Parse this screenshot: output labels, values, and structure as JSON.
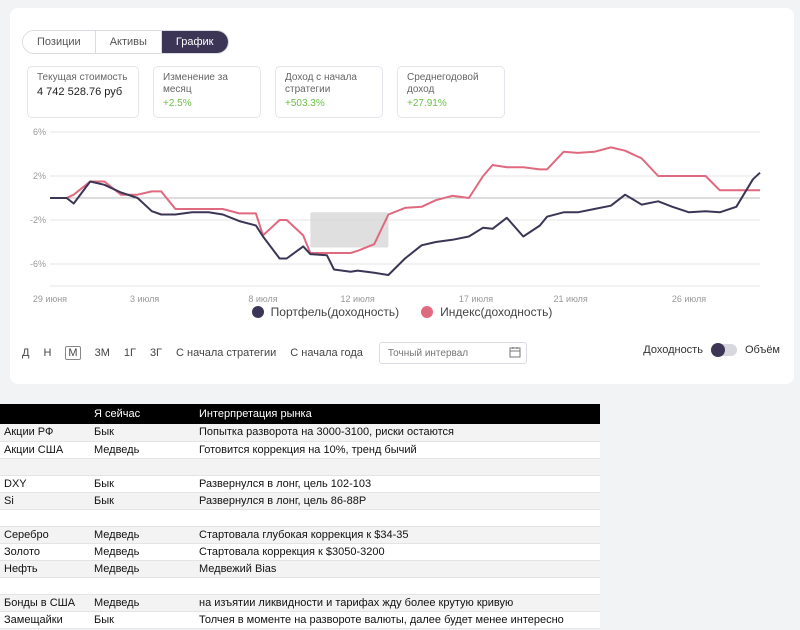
{
  "tabs": [
    "Позиции",
    "Активы",
    "График"
  ],
  "active_tab": 2,
  "kpis": [
    {
      "label": "Текущая стоимость",
      "value": "4 742 528.76 руб",
      "kind": "neutral"
    },
    {
      "label": "Изменение за месяц",
      "value": "+2.5%",
      "kind": "pos"
    },
    {
      "label": "Доход с начала стратегии",
      "value": "+503.3%",
      "kind": "pos"
    },
    {
      "label": "Среднегодовой доход",
      "value": "+27.91%",
      "kind": "pos"
    }
  ],
  "chart_data": {
    "type": "line",
    "y_ticks": [
      "6%",
      "2%",
      "-2%",
      "-6%"
    ],
    "y_tick_values": [
      6,
      2,
      -2,
      -6
    ],
    "ylim": [
      -8,
      6
    ],
    "x_tick_labels": [
      "29 июня",
      "3 июля",
      "8 июля",
      "12 июля",
      "17 июля",
      "21 июля",
      "26 июля"
    ],
    "x_tick_days": [
      0,
      4,
      9,
      13,
      18,
      22,
      27
    ],
    "x": [
      0,
      0.7,
      1,
      1.7,
      2.3,
      3,
      3.7,
      4.3,
      4.7,
      5.3,
      6,
      6.7,
      7.3,
      8,
      8.7,
      9,
      9.7,
      10,
      10.7,
      11,
      11.7,
      12,
      12.7,
      13,
      13.7,
      14.3,
      15,
      15.7,
      16.3,
      17,
      17.7,
      18.3,
      18.7,
      19.3,
      20,
      20.7,
      21,
      21.7,
      22.3,
      23,
      23.7,
      24.3,
      25,
      25.7,
      26.3,
      27,
      27.7,
      28.3,
      29,
      29.7,
      30
    ],
    "series": [
      {
        "name": "Портфель(доходность)",
        "color": "#3d3555",
        "values": [
          0,
          0,
          -0.5,
          1.5,
          1.2,
          0.5,
          0,
          -1.2,
          -1.5,
          -1.5,
          -1.3,
          -1.3,
          -1.5,
          -2.1,
          -2.5,
          -3.5,
          -5.5,
          -5.5,
          -4.4,
          -5.1,
          -5.2,
          -6.5,
          -6.7,
          -6.6,
          -6.8,
          -7.0,
          -5.5,
          -4.3,
          -4.0,
          -3.8,
          -3.5,
          -2.7,
          -2.8,
          -1.8,
          -3.5,
          -2.5,
          -1.7,
          -1.3,
          -1.3,
          -1.0,
          -0.7,
          0.3,
          -0.6,
          -0.3,
          -0.8,
          -1.3,
          -1.2,
          -1.3,
          -0.8,
          1.7,
          2.3
        ]
      },
      {
        "name": "Индекс(доходность)",
        "color": "#e0697f",
        "values": [
          0,
          0,
          0.3,
          1.5,
          1.5,
          0.3,
          0.3,
          0.6,
          0.6,
          -1.0,
          -1.0,
          -1.0,
          -1.0,
          -1.4,
          -1.4,
          -3.4,
          -2.0,
          -2.0,
          -3.4,
          -5.0,
          -5.0,
          -5.0,
          -5.0,
          -4.8,
          -4.2,
          -1.5,
          -0.9,
          -0.8,
          -0.2,
          0.2,
          0,
          2.0,
          3.0,
          2.8,
          2.8,
          2.6,
          2.6,
          4.2,
          4.1,
          4.2,
          4.6,
          4.3,
          3.6,
          2.0,
          2.0,
          2.0,
          2.0,
          0.7,
          0.7,
          0.7,
          0.7
        ]
      }
    ],
    "highlight_region": {
      "x_start": 11.0,
      "x_end": 14.3,
      "y_top": -1.3,
      "y_bottom": -4.5
    },
    "grid": "horizontal"
  },
  "periods": [
    "Д",
    "Н",
    "М",
    "3М",
    "1Г",
    "3Г",
    "С начала стратегии",
    "С начала года"
  ],
  "active_period": 2,
  "date_input_placeholder": "Точный интервал",
  "toggle": {
    "left_label": "Доходность",
    "right_label": "Объём"
  },
  "table": {
    "headers": [
      "",
      "Я сейчас",
      "Интерпретация рынка"
    ],
    "rows": [
      [
        "Акции РФ",
        "Бык",
        "Попытка разворота на 3000-3100, риски остаются"
      ],
      [
        "Акции США",
        "Медведь",
        "Готовится коррекция на 10%, тренд бычий"
      ],
      [
        "",
        "",
        ""
      ],
      [
        "DXY",
        "Бык",
        "Развернулся в лонг, цель 102-103"
      ],
      [
        "Si",
        "Бык",
        "Развернулся в лонг, цель 86-88Р"
      ],
      [
        "",
        "",
        ""
      ],
      [
        "Серебро",
        "Медведь",
        "Стартовала глубокая коррекция к $34-35"
      ],
      [
        "Золото",
        "Медведь",
        "Стартовала коррекция к $3050-3200"
      ],
      [
        "Нефть",
        "Медведь",
        "Медвежий Bias"
      ],
      [
        "",
        "",
        ""
      ],
      [
        "Бонды в США",
        "Медведь",
        "на изъятии ликвидности и тарифах жду более крутую кривую"
      ],
      [
        "Замещайки",
        "Бык",
        "Толчея в моменте на развороте валюты, далее будет менее интересно"
      ]
    ]
  }
}
